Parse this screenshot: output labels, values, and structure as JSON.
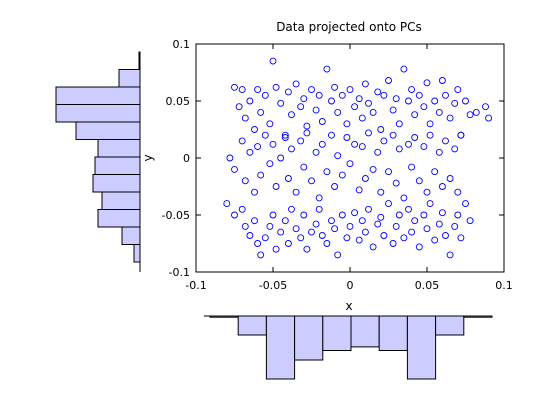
{
  "colors": {
    "marker": "#0000ff",
    "hist_fill": "#ccccff",
    "hist_edge": "#000000",
    "axes": "#000000",
    "background": "#ffffff"
  },
  "chart_data": [
    {
      "type": "scatter",
      "title": "Data projected onto PCs",
      "xlabel": "x",
      "ylabel": "y",
      "xlim": [
        -0.1,
        0.1
      ],
      "ylim": [
        -0.1,
        0.1
      ],
      "xticks": [
        -0.1,
        -0.05,
        0,
        0.05,
        0.1
      ],
      "yticks": [
        -0.1,
        -0.05,
        0,
        0.05,
        0.1
      ],
      "xtick_labels": [
        "-0.1",
        "-0.05",
        "0",
        "0.05",
        "0.1"
      ],
      "ytick_labels": [
        "-0.1",
        "-0.05",
        "0",
        "0.05",
        "0.1"
      ],
      "marker": "open-circle",
      "grid": false,
      "box": true,
      "points": [
        [
          -0.075,
          0.062
        ],
        [
          -0.07,
          0.06
        ],
        [
          -0.072,
          0.045
        ],
        [
          -0.068,
          0.035
        ],
        [
          -0.065,
          0.05
        ],
        [
          -0.062,
          0.025
        ],
        [
          -0.06,
          0.06
        ],
        [
          -0.058,
          0.04
        ],
        [
          -0.055,
          0.055
        ],
        [
          -0.052,
          0.03
        ],
        [
          -0.05,
          0.085
        ],
        [
          -0.048,
          0.062
        ],
        [
          -0.045,
          0.048
        ],
        [
          -0.042,
          0.02
        ],
        [
          -0.04,
          0.058
        ],
        [
          -0.038,
          0.038
        ],
        [
          -0.035,
          0.065
        ],
        [
          -0.032,
          0.045
        ],
        [
          -0.03,
          0.052
        ],
        [
          -0.028,
          0.028
        ],
        [
          -0.025,
          0.06
        ],
        [
          -0.022,
          0.042
        ],
        [
          -0.02,
          0.055
        ],
        [
          -0.018,
          0.032
        ],
        [
          -0.015,
          0.078
        ],
        [
          -0.012,
          0.05
        ],
        [
          -0.01,
          0.062
        ],
        [
          -0.008,
          0.04
        ],
        [
          -0.005,
          0.055
        ],
        [
          -0.002,
          0.03
        ],
        [
          0.0,
          0.06
        ],
        [
          0.003,
          0.045
        ],
        [
          0.006,
          0.052
        ],
        [
          0.008,
          0.035
        ],
        [
          0.01,
          0.065
        ],
        [
          0.012,
          0.048
        ],
        [
          0.015,
          0.04
        ],
        [
          0.018,
          0.058
        ],
        [
          0.02,
          0.025
        ],
        [
          0.022,
          0.055
        ],
        [
          0.025,
          0.068
        ],
        [
          0.028,
          0.042
        ],
        [
          0.03,
          0.052
        ],
        [
          0.032,
          0.03
        ],
        [
          0.035,
          0.078
        ],
        [
          0.038,
          0.05
        ],
        [
          0.04,
          0.06
        ],
        [
          0.042,
          0.038
        ],
        [
          0.045,
          0.055
        ],
        [
          0.048,
          0.045
        ],
        [
          0.05,
          0.066
        ],
        [
          0.052,
          0.03
        ],
        [
          0.055,
          0.05
        ],
        [
          0.058,
          0.04
        ],
        [
          0.06,
          0.068
        ],
        [
          0.062,
          0.055
        ],
        [
          0.065,
          0.035
        ],
        [
          0.068,
          0.048
        ],
        [
          0.07,
          0.06
        ],
        [
          0.072,
          0.02
        ],
        [
          0.075,
          0.05
        ],
        [
          0.078,
          0.038
        ],
        [
          0.082,
          0.04
        ],
        [
          0.088,
          0.045
        ],
        [
          0.09,
          0.035
        ],
        [
          -0.078,
          0.0
        ],
        [
          -0.075,
          -0.01
        ],
        [
          -0.07,
          0.015
        ],
        [
          -0.068,
          -0.02
        ],
        [
          -0.065,
          0.005
        ],
        [
          -0.062,
          -0.03
        ],
        [
          -0.06,
          0.01
        ],
        [
          -0.058,
          -0.015
        ],
        [
          -0.055,
          0.02
        ],
        [
          -0.052,
          -0.005
        ],
        [
          -0.05,
          0.012
        ],
        [
          -0.048,
          -0.025
        ],
        [
          -0.045,
          0.0
        ],
        [
          -0.042,
          0.018
        ],
        [
          -0.04,
          -0.018
        ],
        [
          -0.038,
          0.008
        ],
        [
          -0.035,
          -0.03
        ],
        [
          -0.032,
          0.015
        ],
        [
          -0.03,
          -0.008
        ],
        [
          -0.028,
          0.022
        ],
        [
          -0.025,
          -0.02
        ],
        [
          -0.022,
          0.005
        ],
        [
          -0.02,
          -0.035
        ],
        [
          -0.018,
          0.012
        ],
        [
          -0.015,
          -0.012
        ],
        [
          -0.012,
          0.02
        ],
        [
          -0.01,
          -0.025
        ],
        [
          -0.008,
          0.002
        ],
        [
          -0.005,
          -0.015
        ],
        [
          -0.002,
          0.018
        ],
        [
          0.0,
          -0.005
        ],
        [
          0.003,
          0.012
        ],
        [
          0.006,
          -0.028
        ],
        [
          0.008,
          0.01
        ],
        [
          0.01,
          -0.018
        ],
        [
          0.012,
          0.022
        ],
        [
          0.015,
          -0.01
        ],
        [
          0.018,
          0.005
        ],
        [
          0.02,
          -0.03
        ],
        [
          0.022,
          0.015
        ],
        [
          0.025,
          -0.012
        ],
        [
          0.028,
          0.02
        ],
        [
          0.03,
          -0.022
        ],
        [
          0.032,
          0.008
        ],
        [
          0.035,
          -0.035
        ],
        [
          0.038,
          0.012
        ],
        [
          0.04,
          -0.008
        ],
        [
          0.042,
          0.018
        ],
        [
          0.045,
          -0.02
        ],
        [
          0.048,
          0.01
        ],
        [
          0.05,
          -0.03
        ],
        [
          0.052,
          0.02
        ],
        [
          0.055,
          -0.012
        ],
        [
          0.058,
          0.005
        ],
        [
          0.06,
          -0.025
        ],
        [
          0.062,
          0.015
        ],
        [
          0.065,
          -0.018
        ],
        [
          0.068,
          0.008
        ],
        [
          0.07,
          -0.03
        ],
        [
          0.072,
          0.02
        ],
        [
          -0.08,
          -0.04
        ],
        [
          -0.075,
          -0.05
        ],
        [
          -0.07,
          -0.045
        ],
        [
          -0.068,
          -0.06
        ],
        [
          -0.065,
          -0.068
        ],
        [
          -0.062,
          -0.055
        ],
        [
          -0.06,
          -0.075
        ],
        [
          -0.058,
          -0.085
        ],
        [
          -0.055,
          -0.07
        ],
        [
          -0.052,
          -0.06
        ],
        [
          -0.05,
          -0.05
        ],
        [
          -0.048,
          -0.08
        ],
        [
          -0.045,
          -0.065
        ],
        [
          -0.042,
          -0.055
        ],
        [
          -0.04,
          -0.075
        ],
        [
          -0.038,
          -0.045
        ],
        [
          -0.035,
          -0.062
        ],
        [
          -0.032,
          -0.07
        ],
        [
          -0.03,
          -0.05
        ],
        [
          -0.028,
          -0.08
        ],
        [
          -0.025,
          -0.065
        ],
        [
          -0.022,
          -0.058
        ],
        [
          -0.02,
          -0.045
        ],
        [
          -0.018,
          -0.068
        ],
        [
          -0.015,
          -0.075
        ],
        [
          -0.012,
          -0.055
        ],
        [
          -0.01,
          -0.062
        ],
        [
          -0.008,
          -0.085
        ],
        [
          -0.005,
          -0.05
        ],
        [
          -0.002,
          -0.07
        ],
        [
          0.0,
          -0.06
        ],
        [
          0.003,
          -0.048
        ],
        [
          0.006,
          -0.072
        ],
        [
          0.008,
          -0.055
        ],
        [
          0.01,
          -0.065
        ],
        [
          0.012,
          -0.045
        ],
        [
          0.015,
          -0.078
        ],
        [
          0.018,
          -0.058
        ],
        [
          0.02,
          -0.052
        ],
        [
          0.022,
          -0.068
        ],
        [
          0.025,
          -0.04
        ],
        [
          0.028,
          -0.075
        ],
        [
          0.03,
          -0.06
        ],
        [
          0.032,
          -0.05
        ],
        [
          0.035,
          -0.07
        ],
        [
          0.038,
          -0.045
        ],
        [
          0.04,
          -0.065
        ],
        [
          0.042,
          -0.055
        ],
        [
          0.045,
          -0.078
        ],
        [
          0.048,
          -0.05
        ],
        [
          0.05,
          -0.062
        ],
        [
          0.052,
          -0.04
        ],
        [
          0.055,
          -0.072
        ],
        [
          0.058,
          -0.058
        ],
        [
          0.06,
          -0.048
        ],
        [
          0.062,
          -0.068
        ],
        [
          0.065,
          -0.085
        ],
        [
          0.068,
          -0.06
        ],
        [
          0.07,
          -0.05
        ],
        [
          0.072,
          -0.07
        ],
        [
          0.075,
          -0.04
        ],
        [
          0.078,
          -0.055
        ]
      ]
    },
    {
      "type": "bar",
      "orientation": "horizontal",
      "bar_direction": "leftward",
      "placement": "left of scatter, aligned to y axis",
      "bin_range": [
        -0.1,
        0.1
      ],
      "values": [
        6,
        18,
        42,
        38,
        47,
        45,
        42,
        64,
        84,
        84,
        21,
        1
      ]
    },
    {
      "type": "bar",
      "orientation": "vertical",
      "bar_direction": "downward",
      "placement": "below scatter, aligned to x axis",
      "bin_range": [
        -0.1,
        0.1
      ],
      "values": [
        1,
        16,
        53,
        37,
        29,
        26,
        29,
        53,
        16,
        1
      ]
    }
  ]
}
